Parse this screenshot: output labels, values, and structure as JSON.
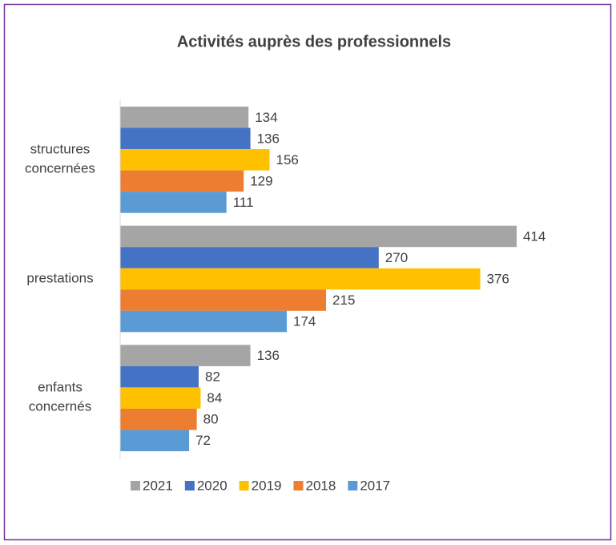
{
  "chart_data": {
    "type": "barh",
    "title": "Activités auprès des professionnels",
    "categories": [
      "structures concernées",
      "prestations",
      "enfants concernés"
    ],
    "series": [
      {
        "name": "2021",
        "color": "#a5a5a5",
        "values": [
          134,
          414,
          136
        ]
      },
      {
        "name": "2020",
        "color": "#4472c4",
        "values": [
          136,
          270,
          82
        ]
      },
      {
        "name": "2019",
        "color": "#ffc000",
        "values": [
          156,
          376,
          84
        ]
      },
      {
        "name": "2018",
        "color": "#ed7d31",
        "values": [
          129,
          215,
          80
        ]
      },
      {
        "name": "2017",
        "color": "#5b9bd5",
        "values": [
          111,
          174,
          72
        ]
      }
    ],
    "xlim": [
      0,
      450
    ],
    "legend": "bottom"
  }
}
